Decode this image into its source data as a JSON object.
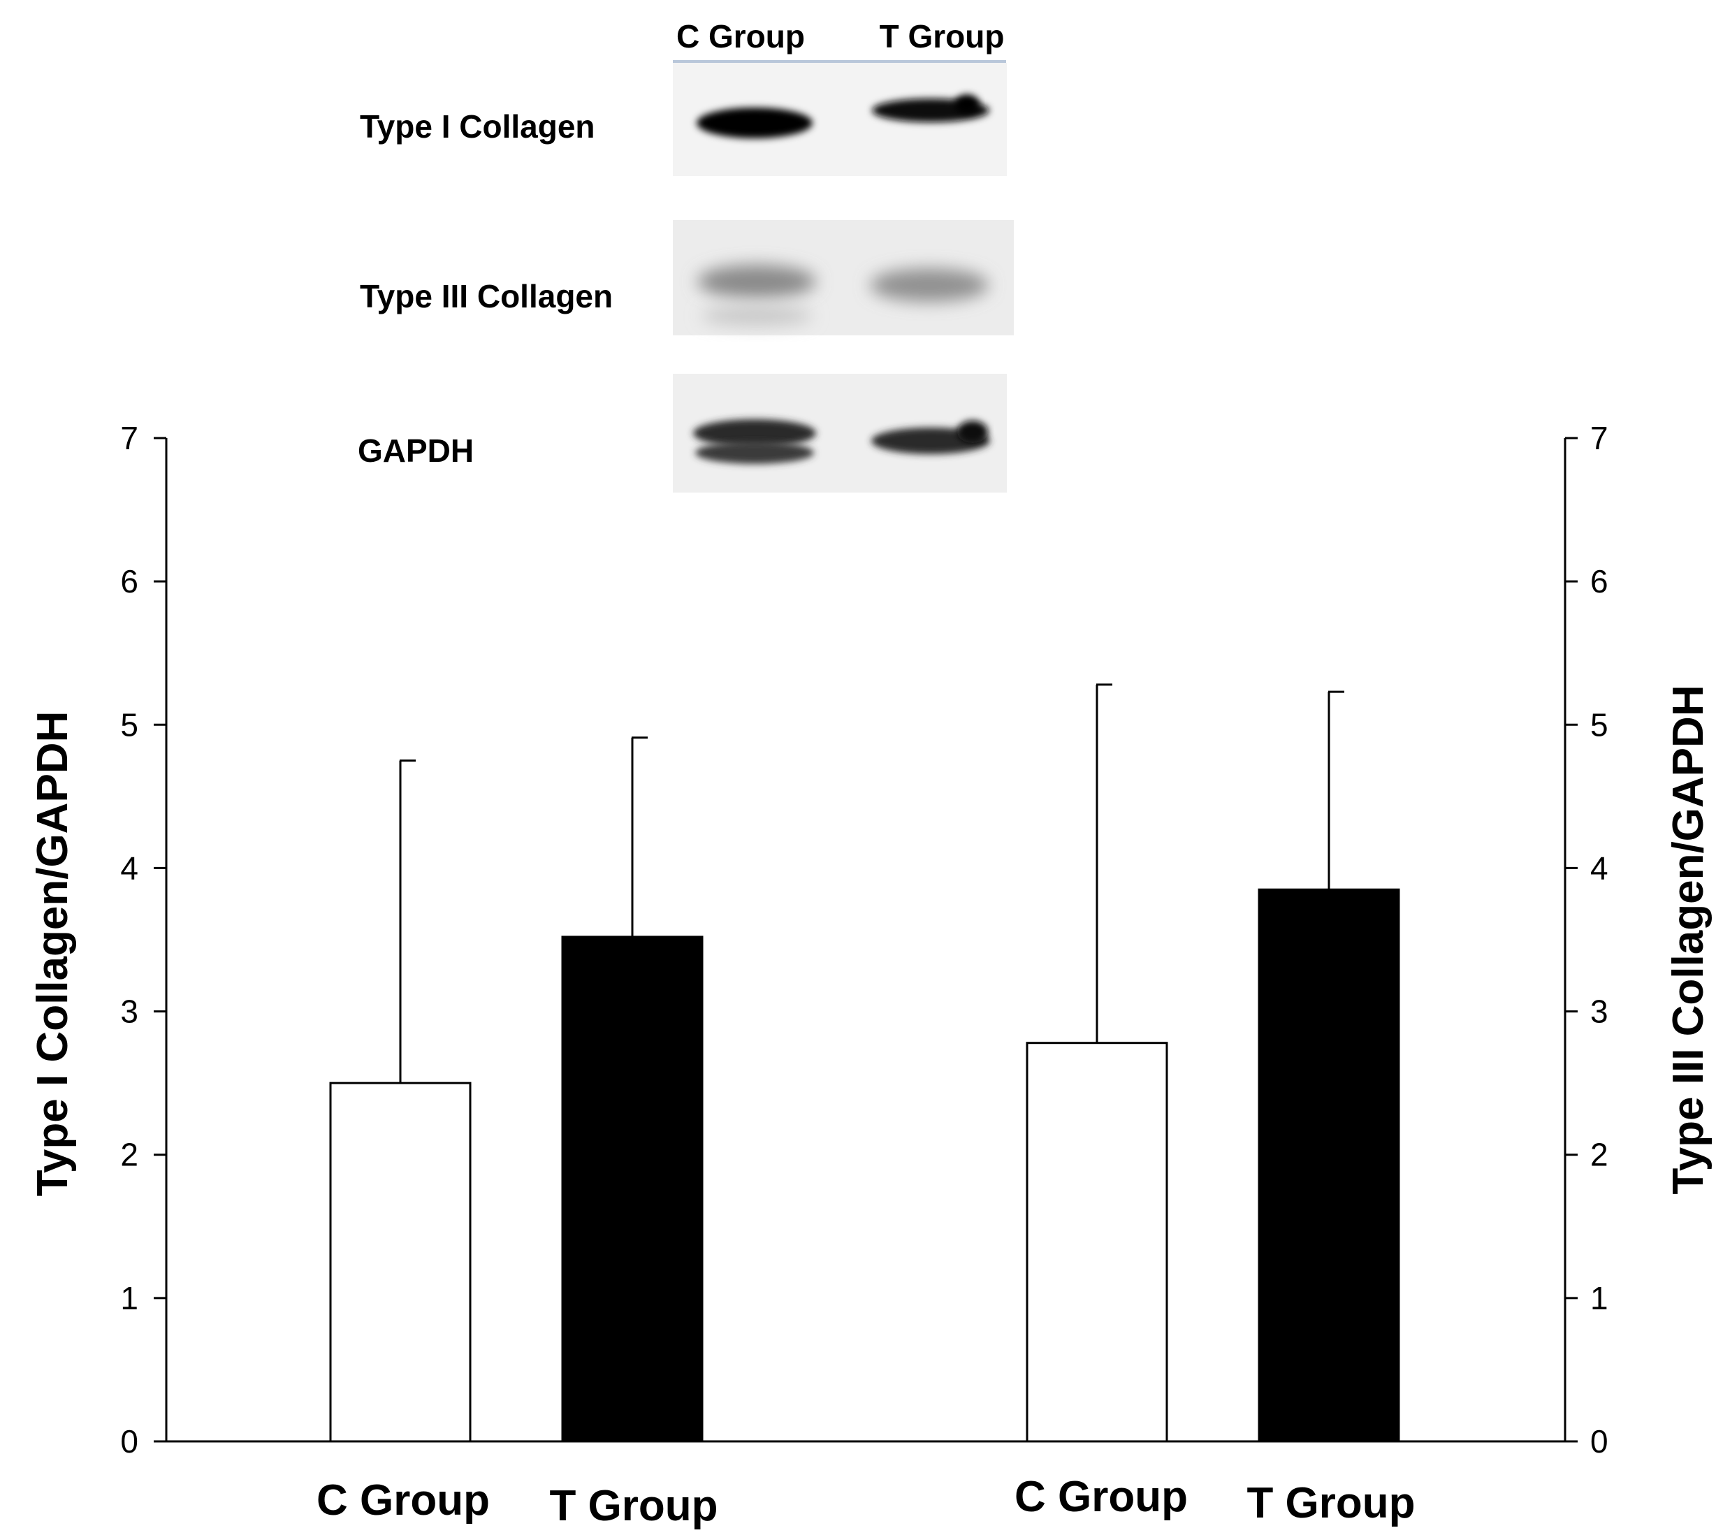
{
  "chart_data": {
    "type": "bar",
    "blot": {
      "lanes": [
        "C Group",
        "T Group"
      ],
      "rows": [
        "Type I Collagen",
        "Type III Collagen",
        "GAPDH"
      ]
    },
    "groups": [
      {
        "ylabel": "Type I Collagen/GAPDH",
        "axis": "left",
        "categories": [
          "C Group",
          "T Group"
        ],
        "values": [
          2.5,
          3.52
        ],
        "errors": [
          2.25,
          1.39
        ],
        "colors": [
          "#ffffff",
          "#000000"
        ]
      },
      {
        "ylabel": "Type III Collagen/GAPDH",
        "axis": "right",
        "categories": [
          "C Group",
          "T Group"
        ],
        "values": [
          2.78,
          3.85
        ],
        "errors": [
          2.5,
          1.38
        ],
        "colors": [
          "#ffffff",
          "#000000"
        ]
      }
    ],
    "ylim": [
      0,
      7
    ],
    "yticks": [
      "0",
      "1",
      "2",
      "3",
      "4",
      "5",
      "6",
      "7"
    ],
    "grid": false
  }
}
